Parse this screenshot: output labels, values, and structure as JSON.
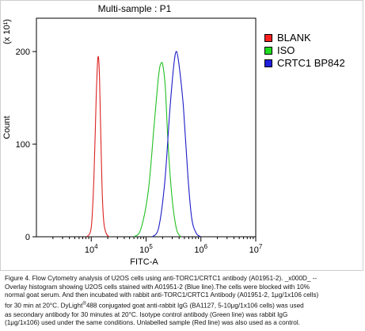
{
  "chart_data": {
    "type": "line",
    "title": "Multi-sample : P1",
    "xlabel": "FITC-A",
    "ylabel": "Count",
    "y_multiplier": "(x 10¹)",
    "x_scale": "log",
    "xlim": [
      1000,
      10000000
    ],
    "ylim": [
      0,
      236
    ],
    "x_ticks": [
      {
        "value": 10000,
        "base": "10",
        "exp": "4"
      },
      {
        "value": 100000,
        "base": "10",
        "exp": "5"
      },
      {
        "value": 1000000,
        "base": "10",
        "exp": "6"
      },
      {
        "value": 10000000,
        "base": "10",
        "exp": "7"
      }
    ],
    "y_ticks": [
      0,
      100,
      200
    ],
    "grid": false,
    "legend_position": "right",
    "series": [
      {
        "name": "BLANK",
        "color": "#dd2222",
        "swatch": "#ff2020",
        "x": [
          8300,
          10000,
          11200,
          12300,
          13200,
          14000,
          14800,
          15800,
          17000,
          19000,
          21500
        ],
        "y": [
          0,
          10,
          65,
          150,
          193,
          180,
          120,
          50,
          15,
          3,
          0
        ]
      },
      {
        "name": "ISO",
        "color": "#20c020",
        "swatch": "#20dd20",
        "x": [
          60000,
          80000,
          110000,
          140000,
          170000,
          190000,
          205000,
          225000,
          255000,
          300000,
          360000,
          430000
        ],
        "y": [
          0,
          8,
          50,
          120,
          175,
          188,
          183,
          160,
          95,
          40,
          8,
          0
        ]
      },
      {
        "name": "CRTC1 BP842",
        "color": "#1c1cc8",
        "swatch": "#2020dd",
        "x": [
          130000,
          170000,
          220000,
          270000,
          320000,
          360000,
          410000,
          480000,
          580000,
          680000,
          820000,
          1000000
        ],
        "y": [
          0,
          10,
          60,
          135,
          185,
          200,
          180,
          140,
          65,
          20,
          4,
          0
        ]
      }
    ]
  },
  "caption": {
    "line1": "Figure 4. Flow Cytometry analysis of U2OS cells using anti-TORC1/CRTC1 antibody (A01951-2). _x000D_ --",
    "line2": "Overlay histogram showing U2OS cells stained with A01951-2 (Blue line).The cells were blocked with 10%",
    "line3": "normal goat serum.  And then incubated with rabbit anti-TORC1/CRTC1 Antibody (A01951-2, 1μg/1x106 cells)",
    "line4a": "for 30 min at 20°C. DyLight",
    "line4sup": "®",
    "line4b": "488 conjugated goat anti-rabbit IgG (BA1127, 5-10μg/1x106 cells) was used",
    "line5": "as secondary antibody for 30 minutes at 20°C. Isotype control antibody (Green line) was rabbit IgG",
    "line6": "(1μg/1x106) used under the same conditions. Unlabelled sample (Red line) was also used as a control."
  }
}
